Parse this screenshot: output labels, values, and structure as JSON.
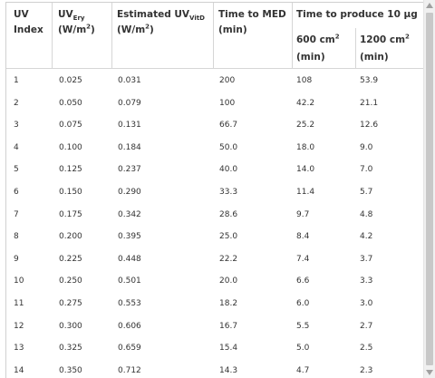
{
  "table": {
    "headers": {
      "uv_index": [
        "UV",
        "Index"
      ],
      "uv_ery": {
        "main": "UV",
        "sub": "Ery",
        "unit_pre": "(W/m",
        "unit_sup": "2",
        "unit_post": ")"
      },
      "uv_vitd": {
        "main": "Estimated UV",
        "sub": "VitD",
        "unit_pre": "(W/m",
        "unit_sup": "2",
        "unit_post": ")"
      },
      "time_med": [
        "Time to MED",
        "(min)"
      ],
      "time_produce": "Time to produce 10 µg",
      "area_600": {
        "main": "600 cm",
        "sup": "2",
        "unit": "(min)"
      },
      "area_1200": {
        "main": "1200 cm",
        "sup": "2",
        "unit": "(min)"
      }
    },
    "rows": [
      [
        "1",
        "0.025",
        "0.031",
        "200",
        "108",
        "53.9"
      ],
      [
        "2",
        "0.050",
        "0.079",
        "100",
        "42.2",
        "21.1"
      ],
      [
        "3",
        "0.075",
        "0.131",
        "66.7",
        "25.2",
        "12.6"
      ],
      [
        "4",
        "0.100",
        "0.184",
        "50.0",
        "18.0",
        "9.0"
      ],
      [
        "5",
        "0.125",
        "0.237",
        "40.0",
        "14.0",
        "7.0"
      ],
      [
        "6",
        "0.150",
        "0.290",
        "33.3",
        "11.4",
        "5.7"
      ],
      [
        "7",
        "0.175",
        "0.342",
        "28.6",
        "9.7",
        "4.8"
      ],
      [
        "8",
        "0.200",
        "0.395",
        "25.0",
        "8.4",
        "4.2"
      ],
      [
        "9",
        "0.225",
        "0.448",
        "22.2",
        "7.4",
        "3.7"
      ],
      [
        "10",
        "0.250",
        "0.501",
        "20.0",
        "6.6",
        "3.3"
      ],
      [
        "11",
        "0.275",
        "0.553",
        "18.2",
        "6.0",
        "3.0"
      ],
      [
        "12",
        "0.300",
        "0.606",
        "16.7",
        "5.5",
        "2.7"
      ],
      [
        "13",
        "0.325",
        "0.659",
        "15.4",
        "5.0",
        "2.5"
      ],
      [
        "14",
        "0.350",
        "0.712",
        "14.3",
        "4.7",
        "2.3"
      ]
    ]
  },
  "colors": {
    "border": "#d0d0d0",
    "text": "#333333",
    "scrollbar_track": "#f0f0f0",
    "scrollbar_thumb": "#c8c8c8"
  },
  "icons": {
    "scroll_up": "triangle-up-icon",
    "scroll_down": "triangle-down-icon"
  }
}
